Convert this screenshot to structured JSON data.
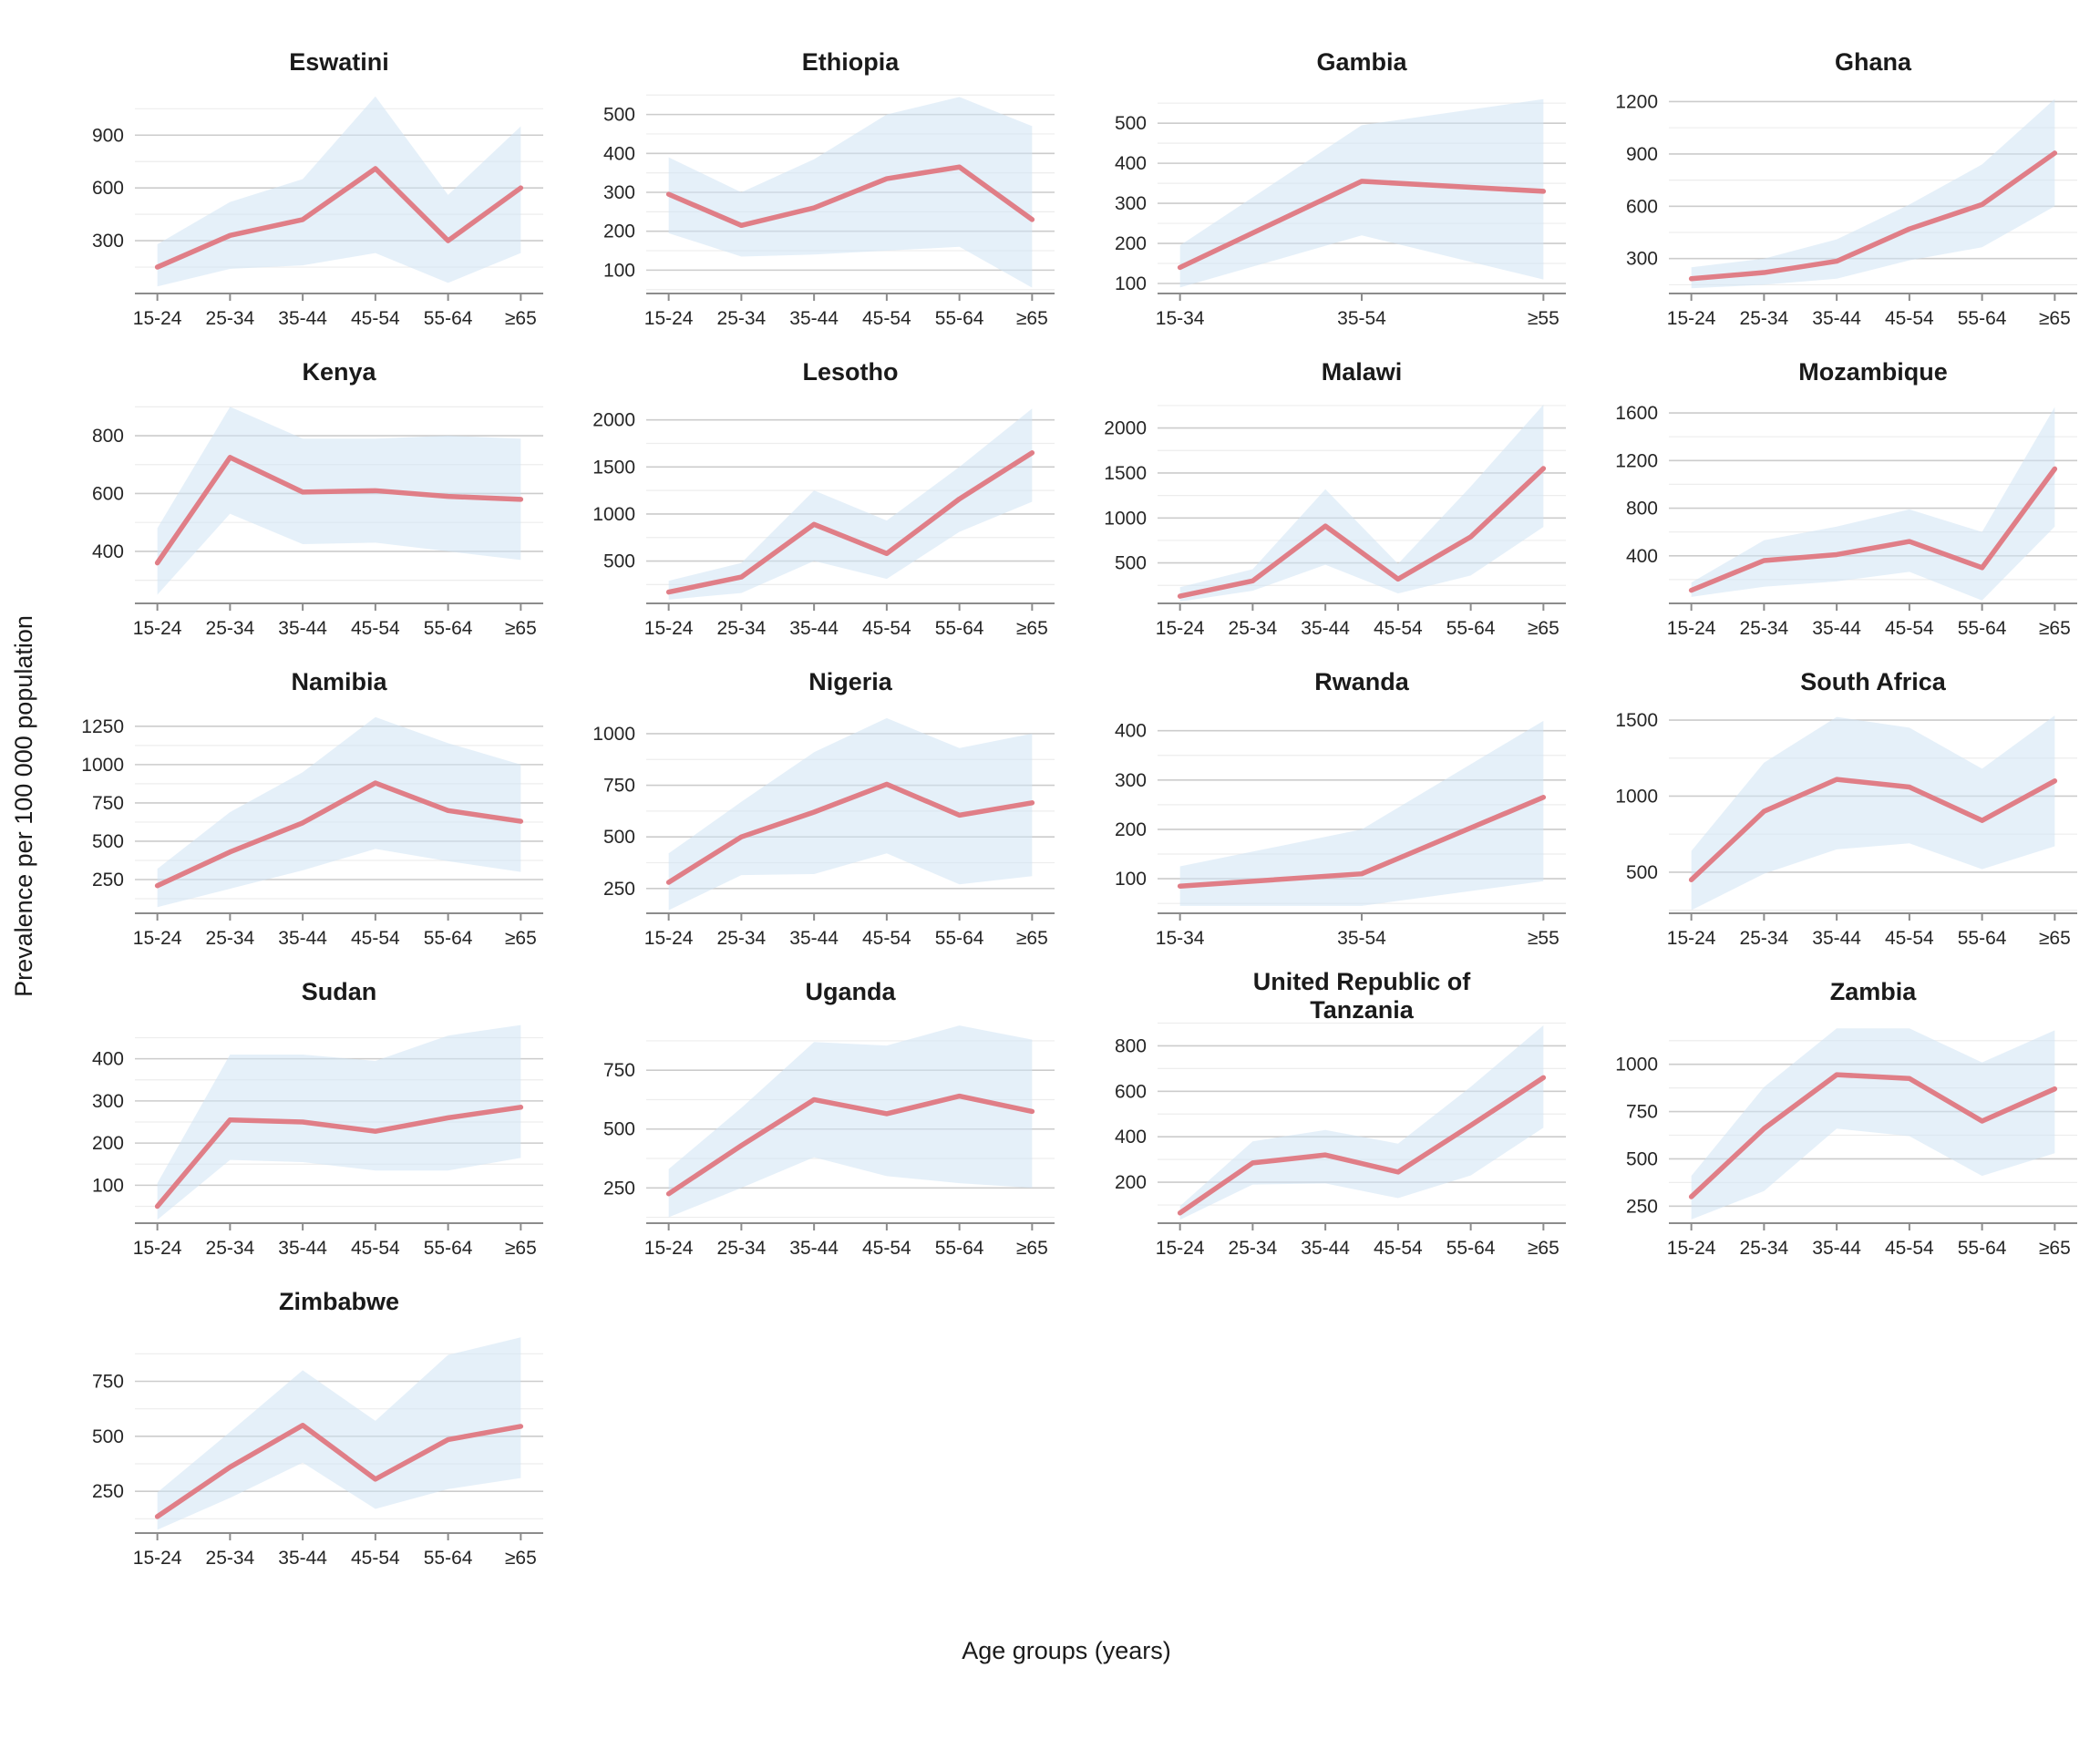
{
  "chart_data": {
    "type": "line",
    "title": "",
    "xlabel": "Age groups (years)",
    "ylabel": "Prevalence per 100 000 population",
    "legend": "none",
    "grid": "on",
    "style": {
      "line_color": "#e07e87",
      "band_fill": "#cfe4f4",
      "band_opacity": 0.55,
      "grid_major_color": "#cccccc",
      "grid_minor_color": "#ededed",
      "axis_color": "#8c8c8c",
      "title_color": "#1a1a1a",
      "tick_label_color": "#262626"
    },
    "panels": [
      {
        "title": "Eswatini",
        "categories": [
          "15-24",
          "25-34",
          "35-44",
          "45-54",
          "55-64",
          "≥65"
        ],
        "yticks": [
          300,
          600,
          900
        ],
        "ylim": [
          0,
          1150
        ],
        "values": [
          150,
          330,
          420,
          710,
          300,
          600
        ],
        "band_lower": [
          40,
          140,
          160,
          230,
          60,
          230
        ],
        "band_upper": [
          280,
          520,
          650,
          1120,
          560,
          950
        ]
      },
      {
        "title": "Ethiopia",
        "categories": [
          "15-24",
          "25-34",
          "35-44",
          "45-54",
          "55-64",
          "≥65"
        ],
        "yticks": [
          100,
          200,
          300,
          400,
          500
        ],
        "ylim": [
          40,
          560
        ],
        "values": [
          295,
          215,
          260,
          335,
          365,
          230
        ],
        "band_lower": [
          195,
          135,
          140,
          150,
          160,
          55
        ],
        "band_upper": [
          390,
          300,
          385,
          500,
          545,
          470
        ]
      },
      {
        "title": "Gambia",
        "categories": [
          "15-34",
          "35-54",
          "≥55"
        ],
        "yticks": [
          100,
          200,
          300,
          400,
          500
        ],
        "ylim": [
          75,
          580
        ],
        "values": [
          140,
          355,
          330
        ],
        "band_lower": [
          90,
          220,
          110
        ],
        "band_upper": [
          195,
          495,
          560
        ]
      },
      {
        "title": "Ghana",
        "categories": [
          "15-24",
          "25-34",
          "35-44",
          "45-54",
          "55-64",
          "≥65"
        ],
        "yticks": [
          300,
          600,
          900,
          1200
        ],
        "ylim": [
          100,
          1260
        ],
        "values": [
          185,
          220,
          285,
          470,
          610,
          905
        ],
        "band_lower": [
          130,
          150,
          185,
          290,
          365,
          600
        ],
        "band_upper": [
          250,
          300,
          410,
          610,
          840,
          1215
        ]
      },
      {
        "title": "Kenya",
        "categories": [
          "15-24",
          "25-34",
          "35-44",
          "45-54",
          "55-64",
          "≥65"
        ],
        "yticks": [
          400,
          600,
          800
        ],
        "ylim": [
          220,
          920
        ],
        "values": [
          360,
          725,
          605,
          610,
          590,
          580
        ],
        "band_lower": [
          250,
          530,
          425,
          430,
          400,
          370
        ],
        "band_upper": [
          480,
          900,
          790,
          790,
          800,
          790
        ]
      },
      {
        "title": "Lesotho",
        "categories": [
          "15-24",
          "25-34",
          "35-44",
          "45-54",
          "55-64",
          "≥65"
        ],
        "yticks": [
          500,
          1000,
          1500,
          2000
        ],
        "ylim": [
          50,
          2200
        ],
        "values": [
          170,
          330,
          890,
          580,
          1160,
          1650
        ],
        "band_lower": [
          90,
          160,
          500,
          310,
          810,
          1130
        ],
        "band_upper": [
          290,
          480,
          1250,
          930,
          1500,
          2120
        ]
      },
      {
        "title": "Malawi",
        "categories": [
          "15-24",
          "25-34",
          "35-44",
          "45-54",
          "55-64",
          "≥65"
        ],
        "yticks": [
          500,
          1000,
          1500,
          2000
        ],
        "ylim": [
          50,
          2300
        ],
        "values": [
          130,
          300,
          910,
          320,
          790,
          1550
        ],
        "band_lower": [
          70,
          190,
          480,
          160,
          360,
          900
        ],
        "band_upper": [
          230,
          430,
          1320,
          490,
          1350,
          2260
        ]
      },
      {
        "title": "Mozambique",
        "categories": [
          "15-24",
          "25-34",
          "35-44",
          "45-54",
          "55-64",
          "≥65"
        ],
        "yticks": [
          400,
          800,
          1200,
          1600
        ],
        "ylim": [
          0,
          1700
        ],
        "values": [
          110,
          360,
          410,
          520,
          300,
          1130
        ],
        "band_lower": [
          55,
          140,
          185,
          265,
          25,
          645
        ],
        "band_upper": [
          175,
          530,
          645,
          790,
          600,
          1650
        ]
      },
      {
        "title": "Namibia",
        "categories": [
          "15-24",
          "25-34",
          "35-44",
          "45-54",
          "55-64",
          "≥65"
        ],
        "yticks": [
          250,
          500,
          750,
          1000,
          1250
        ],
        "ylim": [
          30,
          1350
        ],
        "values": [
          210,
          430,
          620,
          880,
          700,
          630
        ],
        "band_lower": [
          70,
          190,
          310,
          450,
          370,
          300
        ],
        "band_upper": [
          320,
          690,
          950,
          1310,
          1140,
          1000
        ]
      },
      {
        "title": "Nigeria",
        "categories": [
          "15-24",
          "25-34",
          "35-44",
          "45-54",
          "55-64",
          "≥65"
        ],
        "yticks": [
          250,
          500,
          750,
          1000
        ],
        "ylim": [
          130,
          1110
        ],
        "values": [
          280,
          500,
          620,
          755,
          605,
          665
        ],
        "band_lower": [
          145,
          315,
          320,
          420,
          270,
          310
        ],
        "band_upper": [
          420,
          670,
          910,
          1075,
          930,
          1000
        ]
      },
      {
        "title": "Rwanda",
        "categories": [
          "15-34",
          "35-54",
          "≥55"
        ],
        "yticks": [
          100,
          200,
          300,
          400
        ],
        "ylim": [
          30,
          440
        ],
        "values": [
          85,
          110,
          265
        ],
        "band_lower": [
          45,
          45,
          95
        ],
        "band_upper": [
          125,
          200,
          420
        ]
      },
      {
        "title": "South Africa",
        "categories": [
          "15-24",
          "25-34",
          "35-44",
          "45-54",
          "55-64",
          "≥65"
        ],
        "yticks": [
          500,
          1000,
          1500
        ],
        "ylim": [
          230,
          1560
        ],
        "values": [
          450,
          900,
          1110,
          1060,
          840,
          1100
        ],
        "band_lower": [
          250,
          490,
          650,
          690,
          520,
          670
        ],
        "band_upper": [
          640,
          1220,
          1520,
          1450,
          1180,
          1530
        ]
      },
      {
        "title": "Sudan",
        "categories": [
          "15-24",
          "25-34",
          "35-44",
          "45-54",
          "55-64",
          "≥65"
        ],
        "yticks": [
          100,
          200,
          300,
          400
        ],
        "ylim": [
          10,
          490
        ],
        "values": [
          50,
          255,
          250,
          228,
          260,
          285
        ],
        "band_lower": [
          18,
          160,
          155,
          135,
          135,
          165
        ],
        "band_upper": [
          105,
          410,
          410,
          395,
          455,
          480
        ]
      },
      {
        "title": "Uganda",
        "categories": [
          "15-24",
          "25-34",
          "35-44",
          "45-54",
          "55-64",
          "≥65"
        ],
        "yticks": [
          250,
          500,
          750
        ],
        "ylim": [
          100,
          960
        ],
        "values": [
          225,
          430,
          625,
          565,
          640,
          575
        ],
        "band_lower": [
          125,
          250,
          380,
          300,
          270,
          250
        ],
        "band_upper": [
          330,
          590,
          870,
          855,
          940,
          880
        ]
      },
      {
        "title": "United Republic of\nTanzania",
        "categories": [
          "15-24",
          "25-34",
          "35-44",
          "45-54",
          "55-64",
          "≥65"
        ],
        "yticks": [
          200,
          400,
          600,
          800
        ],
        "ylim": [
          20,
          910
        ],
        "values": [
          65,
          285,
          320,
          245,
          450,
          660
        ],
        "band_lower": [
          35,
          190,
          195,
          130,
          230,
          440
        ],
        "band_upper": [
          95,
          380,
          430,
          370,
          620,
          890
        ]
      },
      {
        "title": "Zambia",
        "categories": [
          "15-24",
          "25-34",
          "35-44",
          "45-54",
          "55-64",
          "≥65"
        ],
        "yticks": [
          250,
          500,
          750,
          1000
        ],
        "ylim": [
          160,
          1230
        ],
        "values": [
          300,
          660,
          945,
          925,
          700,
          870
        ],
        "band_lower": [
          180,
          330,
          660,
          620,
          410,
          530
        ],
        "band_upper": [
          410,
          880,
          1190,
          1190,
          1010,
          1180
        ]
      },
      {
        "title": "Zimbabwe",
        "categories": [
          "15-24",
          "25-34",
          "35-44",
          "45-54",
          "55-64",
          "≥65"
        ],
        "yticks": [
          250,
          500,
          750
        ],
        "ylim": [
          60,
          980
        ],
        "values": [
          135,
          360,
          550,
          305,
          485,
          545
        ],
        "band_lower": [
          75,
          220,
          380,
          170,
          260,
          310
        ],
        "band_upper": [
          245,
          520,
          800,
          570,
          870,
          950
        ]
      }
    ]
  }
}
